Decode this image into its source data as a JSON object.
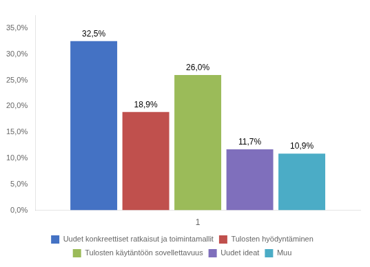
{
  "chart_data": {
    "type": "bar",
    "categories": [
      "1"
    ],
    "series": [
      {
        "name": "Uudet konkreettiset ratkaisut ja toimintamallit",
        "color": "#4472C4",
        "values": [
          32.5
        ],
        "value_labels": [
          "32,5%"
        ]
      },
      {
        "name": "Tulosten hyödyntäminen",
        "color": "#C0504D",
        "values": [
          18.9
        ],
        "value_labels": [
          "18,9%"
        ]
      },
      {
        "name": "Tulosten käytäntöön sovellettavuus",
        "color": "#9BBB59",
        "values": [
          26.0
        ],
        "value_labels": [
          "26,0%"
        ]
      },
      {
        "name": "Uudet ideat",
        "color": "#7F6FBC",
        "values": [
          11.7
        ],
        "value_labels": [
          "11,7%"
        ]
      },
      {
        "name": "Muu",
        "color": "#4BACC6",
        "values": [
          10.9
        ],
        "value_labels": [
          "10,9%"
        ]
      }
    ],
    "ylim": [
      0,
      37.5
    ],
    "yticks": [
      {
        "value": 0.0,
        "label": "0,0%"
      },
      {
        "value": 5.0,
        "label": "5,0%"
      },
      {
        "value": 10.0,
        "label": "10,0%"
      },
      {
        "value": 15.0,
        "label": "15,0%"
      },
      {
        "value": 20.0,
        "label": "20,0%"
      },
      {
        "value": 25.0,
        "label": "25,0%"
      },
      {
        "value": 30.0,
        "label": "30,0%"
      },
      {
        "value": 35.0,
        "label": "35,0%"
      }
    ],
    "grid": false,
    "legend": "bottom",
    "data_labels": true
  }
}
